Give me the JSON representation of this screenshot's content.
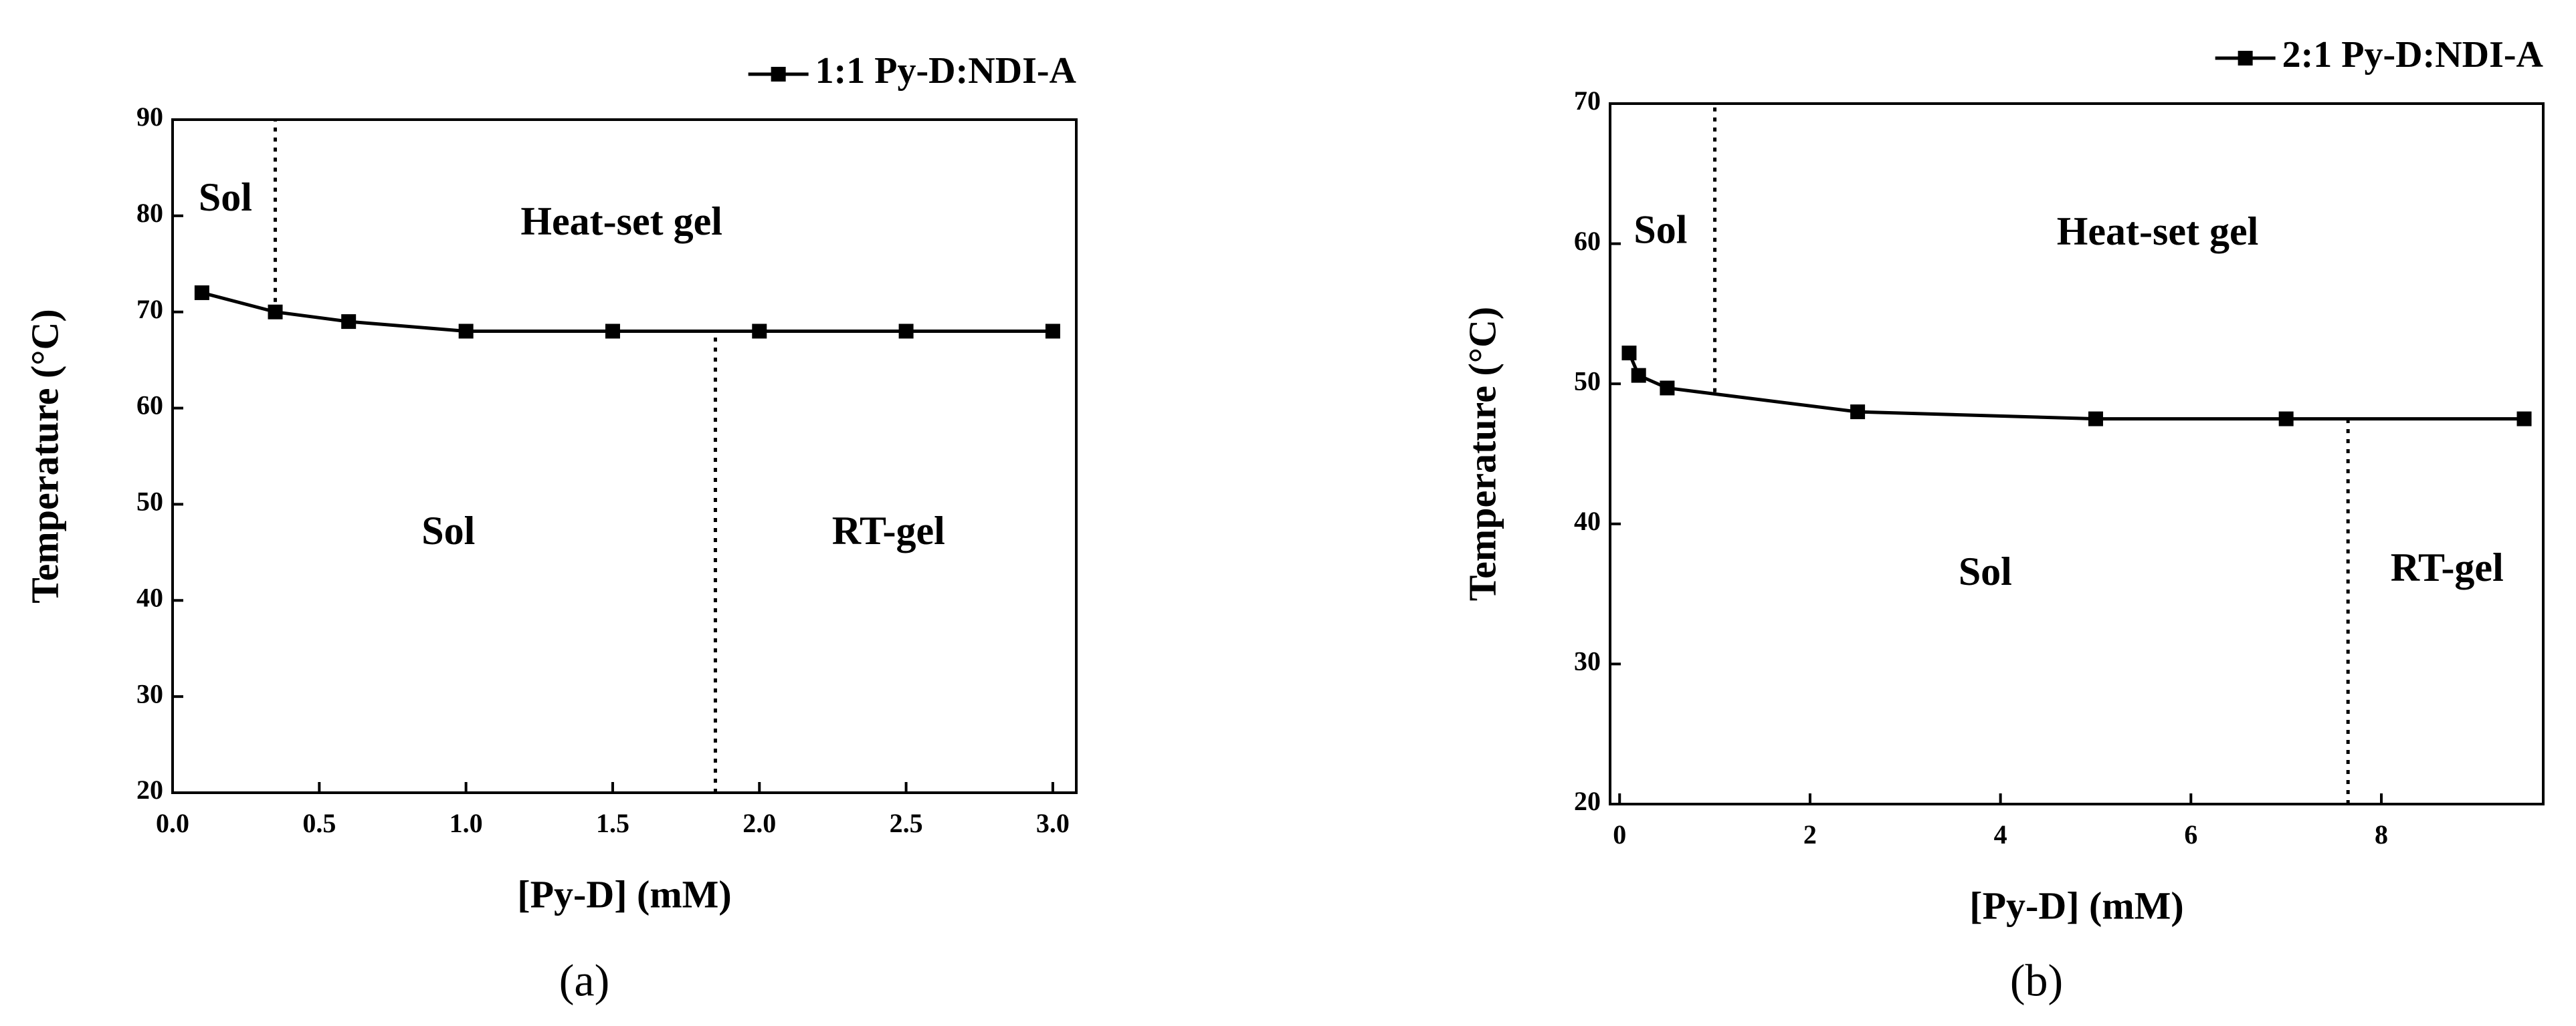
{
  "chart_data": [
    {
      "type": "line",
      "caption": "(a)",
      "xlabel": "[Py-D] (mM)",
      "ylabel": "Temperature (°C)",
      "x": [
        0.1,
        0.35,
        0.6,
        1.0,
        1.5,
        2.0,
        2.5,
        3.0
      ],
      "series": [
        {
          "name": "1:1 Py-D:NDI-A",
          "color": "#000000",
          "values": [
            72,
            70,
            69,
            68,
            68,
            68,
            68,
            68
          ]
        }
      ],
      "xlim": [
        0.0,
        3.08
      ],
      "ylim": [
        20,
        90
      ],
      "xticks": [
        {
          "value": 0.0,
          "label": "0.0"
        },
        0.5,
        {
          "value": 1.0,
          "label": "1.0"
        },
        1.5,
        {
          "value": 2.0,
          "label": "2.0"
        },
        2.5,
        {
          "value": 3.0,
          "label": "3.0"
        }
      ],
      "yticks": [
        20,
        30,
        40,
        50,
        60,
        70,
        80,
        90
      ],
      "legend": "top-right",
      "marker": "square",
      "phase_boundaries": [
        {
          "x": 0.35,
          "y": [
            70,
            90
          ]
        },
        {
          "x": 1.85,
          "y": [
            20,
            68
          ]
        }
      ],
      "annotations": [
        {
          "text": "Sol",
          "x": 0.18,
          "y": 81.5
        },
        {
          "text": "Heat-set gel",
          "x": 1.53,
          "y": 79
        },
        {
          "text": "Sol",
          "x": 0.94,
          "y": 46.8
        },
        {
          "text": "RT-gel",
          "x": 2.44,
          "y": 46.8
        }
      ]
    },
    {
      "type": "line",
      "caption": "(b)",
      "xlabel": "[Py-D] (mM)",
      "ylabel": "Temperature (°C)",
      "x": [
        0.1,
        0.2,
        0.5,
        2.5,
        5,
        7,
        9.5
      ],
      "series": [
        {
          "name": "2:1 Py-D:NDI-A",
          "color": "#000000",
          "values": [
            52.2,
            50.6,
            49.7,
            48,
            47.5,
            47.5,
            47.5
          ]
        }
      ],
      "xlim": [
        -0.1,
        9.7
      ],
      "ylim": [
        20,
        70
      ],
      "xticks": [
        0,
        2,
        4,
        6,
        8
      ],
      "yticks": [
        20,
        30,
        40,
        50,
        60,
        70
      ],
      "legend": "top-right",
      "marker": "square",
      "phase_boundaries": [
        {
          "x": 1.0,
          "y": [
            49.4,
            70
          ]
        },
        {
          "x": 7.65,
          "y": [
            20,
            47.5
          ]
        }
      ],
      "annotations": [
        {
          "text": "Sol",
          "x": 0.43,
          "y": 60.7
        },
        {
          "text": "Heat-set gel",
          "x": 5.65,
          "y": 60.6
        },
        {
          "text": "Sol",
          "x": 3.84,
          "y": 36.3
        },
        {
          "text": "RT-gel",
          "x": 8.69,
          "y": 36.6
        }
      ]
    }
  ]
}
